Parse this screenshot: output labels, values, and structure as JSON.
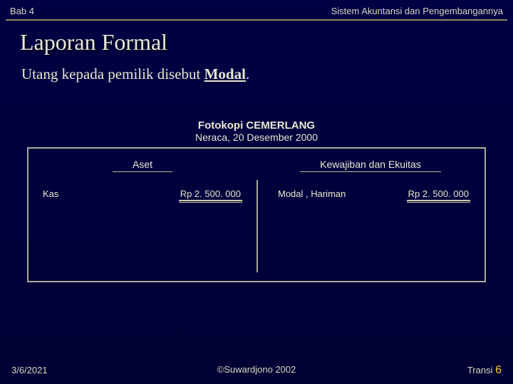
{
  "header": {
    "left": "Bab 4",
    "right": "Sistem Akuntansi dan Pengembangannya"
  },
  "title": "Laporan Formal",
  "subtitle": {
    "pre": "Utang kepada pemilik disebut ",
    "bold": "Modal",
    "post": "."
  },
  "sheet": {
    "company": "Fotokopi CEMERLANG",
    "dateline": "Neraca, 20 Desember 2000",
    "col_left": "Aset",
    "col_right": "Kewajiban dan Ekuitas",
    "row": {
      "asset_label": "Kas",
      "asset_amount": "Rp 2. 500. 000",
      "equity_label": "Modal , Hariman",
      "equity_amount": "Rp 2. 500. 000"
    }
  },
  "footer": {
    "date": "3/6/2021",
    "copyright": "©Suwardjono 2002",
    "transi_label": "Transi ",
    "transi_num": "6"
  }
}
